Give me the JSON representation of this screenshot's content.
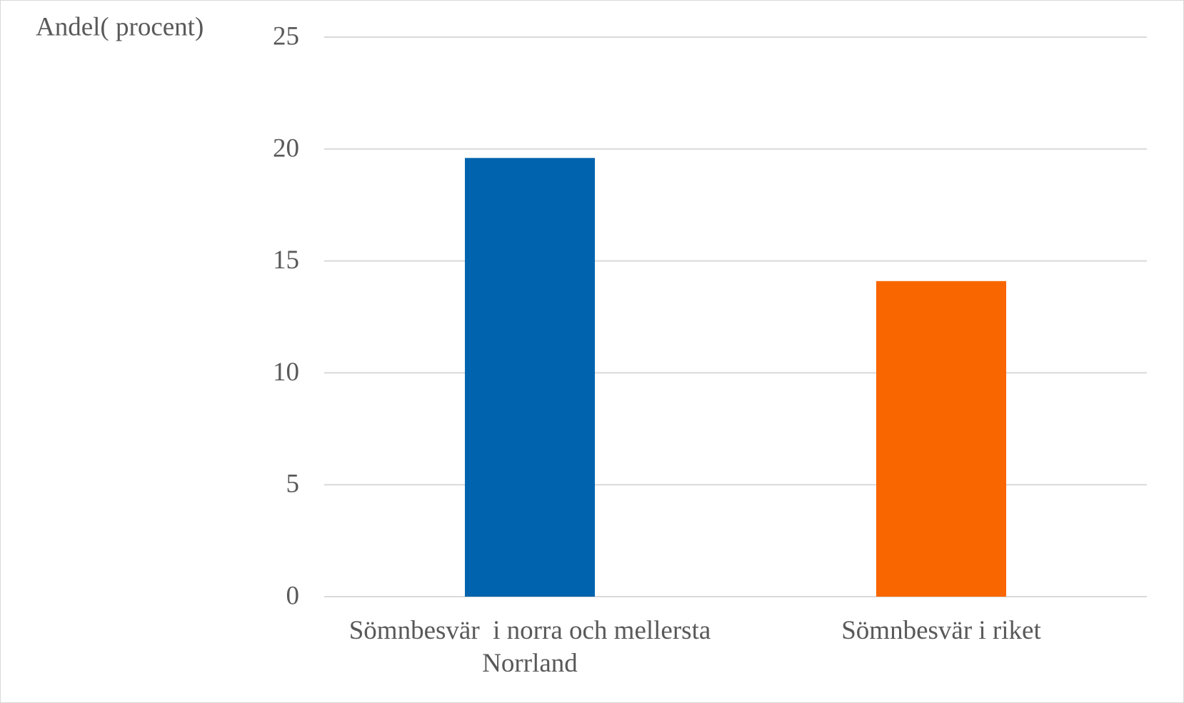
{
  "chart_data": {
    "type": "bar",
    "y_label": "Andel( procent)",
    "categories": [
      "Sömnbesvär  i norra och mellersta Norrland",
      "Sömnbesvär i riket"
    ],
    "values": [
      19.6,
      14.1
    ],
    "colors": [
      "#0063ad",
      "#f96600"
    ],
    "ylim": [
      0,
      25
    ],
    "yticks": [
      0,
      5,
      10,
      15,
      20,
      25
    ],
    "grid": true
  }
}
